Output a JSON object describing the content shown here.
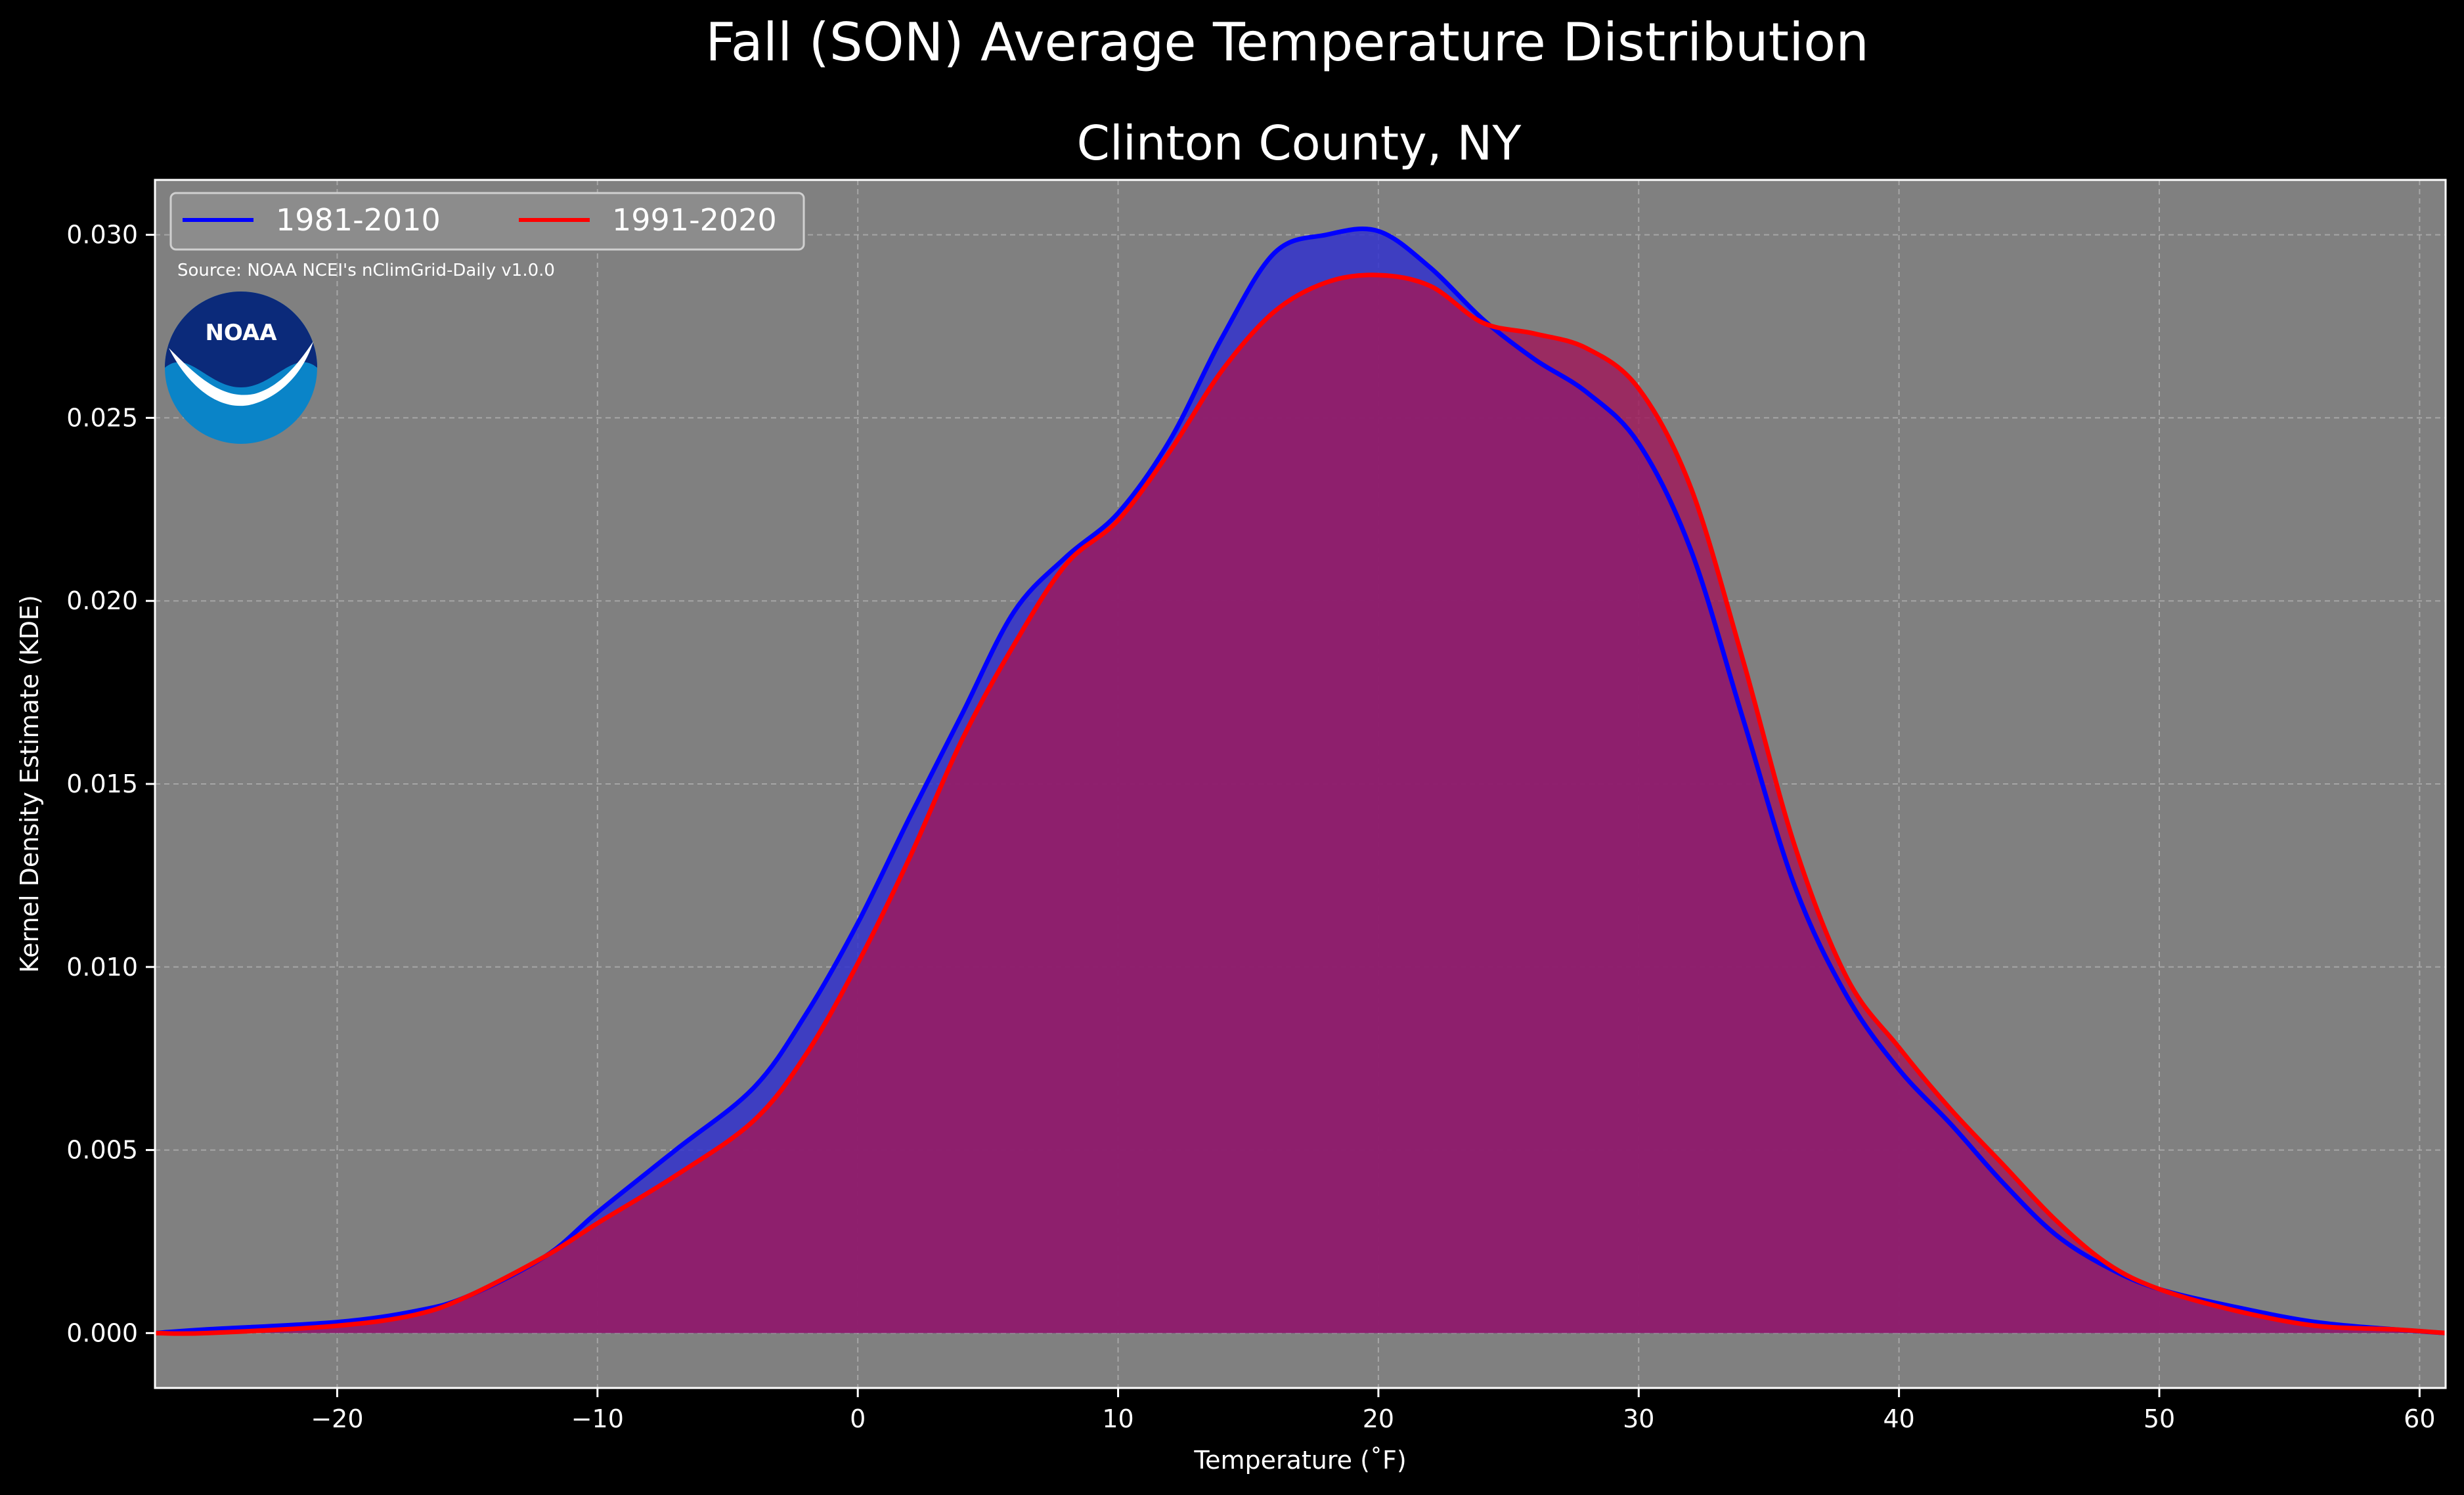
{
  "colors": {
    "background": "#000000",
    "plot_background": "#808080",
    "grid": "#b0b0b0",
    "series_1981": "#0000ff",
    "series_1991": "#ff0000",
    "fill_1981": "#3333cc",
    "fill_1991": "#a0185a",
    "noaa_dark": "#0b2a7a",
    "noaa_light": "#0a84c8"
  },
  "icons": {
    "logo": "noaa-logo"
  },
  "source_note": "Source: NOAA NCEI's nClimGrid-Daily v1.0.0",
  "logo_text": "NOAA",
  "chart_data": {
    "type": "area",
    "suptitle": "Fall (SON) Average Temperature Distribution",
    "title": "Clinton County, NY",
    "xlabel": "Temperature (˚F)",
    "ylabel": "Kernel Density Estimate (KDE)",
    "xlim": [
      -27,
      61
    ],
    "ylim": [
      -0.0015,
      0.0315
    ],
    "xticks": [
      -20,
      -10,
      0,
      10,
      20,
      30,
      40,
      50,
      60
    ],
    "xtick_labels": [
      "−20",
      "−10",
      "0",
      "10",
      "20",
      "30",
      "40",
      "50",
      "60"
    ],
    "yticks": [
      0.0,
      0.005,
      0.01,
      0.015,
      0.02,
      0.025,
      0.03
    ],
    "ytick_labels": [
      "0.000",
      "0.005",
      "0.010",
      "0.015",
      "0.020",
      "0.025",
      "0.030"
    ],
    "grid": true,
    "legend_position": "top-left",
    "legend_columns": 2,
    "series": [
      {
        "name": "1981-2010",
        "color": "#0000ff",
        "x": [
          -27,
          -25,
          -20,
          -17,
          -15,
          -12,
          -10,
          -7,
          -4,
          -2,
          0,
          2,
          4,
          6,
          8,
          10,
          12,
          14,
          16,
          18,
          20,
          22,
          24,
          26,
          28,
          30,
          32,
          34,
          36,
          38,
          40,
          42,
          44,
          46,
          48,
          50,
          53,
          56,
          59,
          61
        ],
        "y": [
          0.0,
          0.0001,
          0.0003,
          0.0006,
          0.001,
          0.0021,
          0.0033,
          0.005,
          0.0067,
          0.0087,
          0.0112,
          0.0141,
          0.0169,
          0.0197,
          0.0212,
          0.0224,
          0.0244,
          0.0272,
          0.0295,
          0.03,
          0.0301,
          0.0291,
          0.0277,
          0.0266,
          0.0257,
          0.0243,
          0.0214,
          0.0168,
          0.0122,
          0.0092,
          0.0072,
          0.0057,
          0.0041,
          0.0027,
          0.0018,
          0.0012,
          0.0007,
          0.0003,
          0.0001,
          0.0
        ]
      },
      {
        "name": "1991-2020",
        "color": "#ff0000",
        "x": [
          -27,
          -25,
          -20,
          -17,
          -15,
          -12,
          -10,
          -7,
          -4,
          -2,
          0,
          2,
          4,
          6,
          8,
          10,
          12,
          14,
          16,
          18,
          20,
          22,
          24,
          26,
          28,
          30,
          32,
          34,
          36,
          38,
          40,
          42,
          44,
          46,
          48,
          50,
          53,
          56,
          59,
          61
        ],
        "y": [
          0.0,
          0.0,
          0.0002,
          0.0005,
          0.001,
          0.0021,
          0.003,
          0.0043,
          0.0058,
          0.0076,
          0.0101,
          0.013,
          0.0162,
          0.0188,
          0.021,
          0.0222,
          0.0241,
          0.0263,
          0.0279,
          0.0287,
          0.0289,
          0.0286,
          0.0276,
          0.0273,
          0.0269,
          0.0258,
          0.0231,
          0.0184,
          0.0133,
          0.0097,
          0.0078,
          0.0061,
          0.0046,
          0.0031,
          0.0019,
          0.0012,
          0.0006,
          0.0002,
          0.0001,
          0.0
        ]
      }
    ]
  }
}
